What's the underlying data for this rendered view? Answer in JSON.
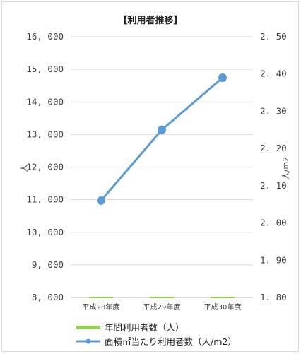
{
  "chart_data": {
    "type": "bar",
    "title": "【利用者推移】",
    "categories": [
      "平成28年度",
      "平成29年度",
      "平成30年度"
    ],
    "y_left": {
      "label": "人",
      "range": [
        8000,
        16000
      ],
      "ticks": [
        "8, 000",
        "9, 000",
        "10, 000",
        "11, 000",
        "12, 000",
        "13, 000",
        "14, 000",
        "15, 000",
        "16, 000"
      ]
    },
    "y_right": {
      "label": "人/m2",
      "range": [
        1.8,
        2.5
      ],
      "ticks": [
        "1. 80",
        "1. 90",
        "2. 00",
        "2. 10",
        "2. 20",
        "2. 30",
        "2. 40",
        "2. 50"
      ]
    },
    "series": [
      {
        "name": "年間利用者数（人）",
        "type": "bar",
        "axis": "left",
        "color": "#92d050",
        "values": [
          null,
          null,
          null
        ]
      },
      {
        "name": "面積㎡当たり利用者数（人/m2）",
        "type": "line",
        "axis": "right",
        "color": "#5b9bd5",
        "values": [
          2.06,
          2.25,
          2.39
        ]
      }
    ],
    "grid": true,
    "legend_position": "bottom"
  }
}
